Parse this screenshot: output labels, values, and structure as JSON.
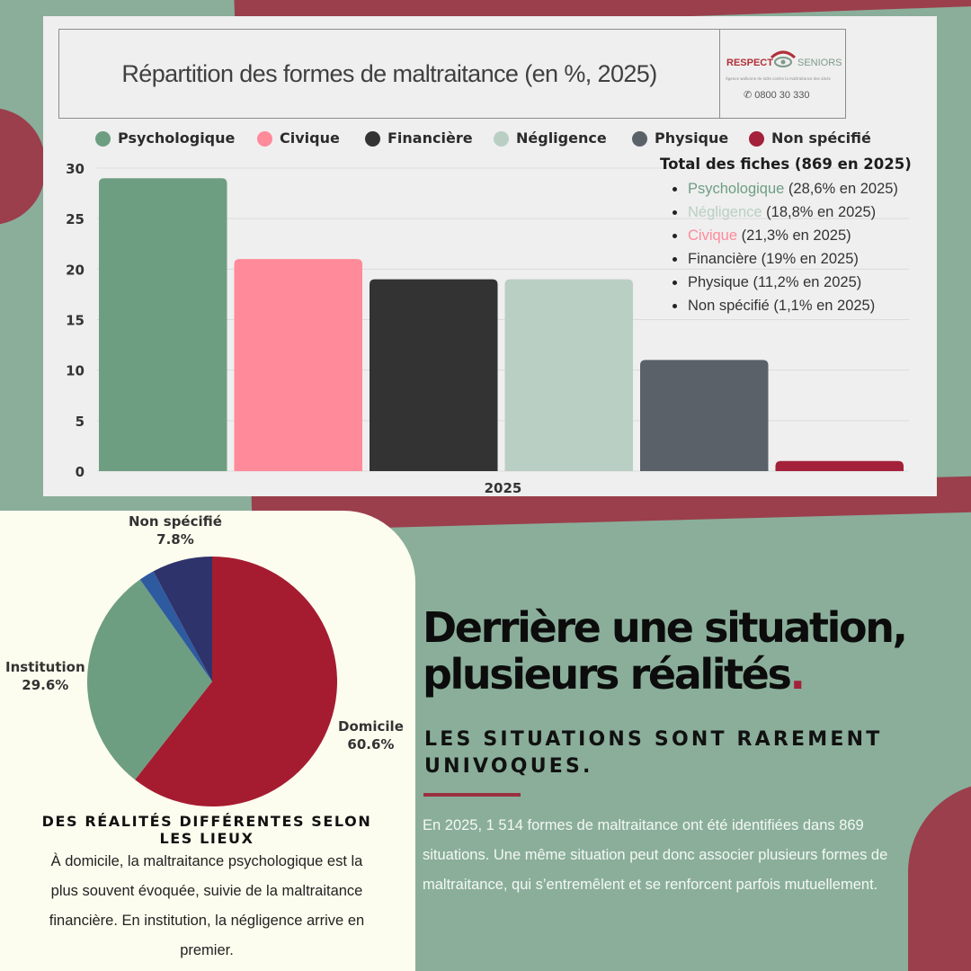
{
  "colors": {
    "psychologique": "#6e9e82",
    "civique": "#ff8a9a",
    "financiere": "#333333",
    "negligence": "#b9cfc4",
    "physique": "#5b6169",
    "non_specifie": "#a3213a",
    "pie_domicile": "#a51c30",
    "pie_institution": "#6e9e82",
    "pie_autre": "#2e5aa0",
    "pie_non_specifie": "#2f336b",
    "background_green": "#8aae9a",
    "background_red": "#9b3f4c"
  },
  "logo": {
    "respect": "RESPECT",
    "seniors": "SENIORS",
    "tagline": "Agence wallonne de lutte contre la maltraitance des aînés",
    "phone": "0800 30 330"
  },
  "chart_data": [
    {
      "type": "bar",
      "title": "Répartition des formes de maltraitance (en %, 2025)",
      "categories": [
        "2025"
      ],
      "series": [
        {
          "name": "Psychologique",
          "values": [
            29
          ]
        },
        {
          "name": "Civique",
          "values": [
            21
          ]
        },
        {
          "name": "Financière",
          "values": [
            19
          ]
        },
        {
          "name": "Négligence",
          "values": [
            19
          ]
        },
        {
          "name": "Physique",
          "values": [
            11
          ]
        },
        {
          "name": "Non spécifié",
          "values": [
            1
          ]
        }
      ],
      "yticks": [
        "0",
        "5",
        "10",
        "15",
        "20",
        "25",
        "30"
      ],
      "ylim": [
        0,
        30
      ],
      "grid": true,
      "legend": "top",
      "annotation": {
        "title": "Total des fiches (869 en 2025)",
        "items": [
          {
            "label": "Psychologique",
            "detail": " (28,6% en 2025)",
            "color": "#6e9e82"
          },
          {
            "label": "Négligence",
            "detail": " (18,8% en 2025)",
            "color": "#b9cfc4"
          },
          {
            "label": "Civique",
            "detail": " (21,3% en 2025)",
            "color": "#ff8a9a"
          },
          {
            "label": "Financière",
            "detail": " (19% en 2025)",
            "color": "#333333"
          },
          {
            "label": "Physique",
            "detail": " (11,2% en 2025)",
            "color": "#333333"
          },
          {
            "label": "Non spécifié",
            "detail": " (1,1% en 2025)",
            "color": "#333333"
          }
        ]
      }
    },
    {
      "type": "pie",
      "slices": [
        {
          "label": "Domicile",
          "value": 60.6,
          "display": "60.6%"
        },
        {
          "label": "Institution",
          "value": 29.6,
          "display": "29.6%"
        },
        {
          "label": "",
          "value": 2.0,
          "display": ""
        },
        {
          "label": "Non spécifié",
          "value": 7.8,
          "display": "7.8%"
        }
      ]
    }
  ],
  "pie_section": {
    "subtitle": "DES RÉALITÉS DIFFÉRENTES SELON LES LIEUX",
    "text": "À domicile, la maltraitance psychologique est la plus souvent évoquée, suivie de la maltraitance financière. En institution, la négligence arrive en premier."
  },
  "headline": {
    "text": "Derrière une situation, plusieurs réalités",
    "dot": "."
  },
  "subheadline": "LES SITUATIONS SONT RAREMENT UNIVOQUES.",
  "body": "En 2025, 1 514 formes de maltraitance ont été identifiées dans 869 situations. Une même situation peut donc associer plusieurs formes de maltraitance, qui s’entremêlent et se renforcent parfois mutuellement."
}
